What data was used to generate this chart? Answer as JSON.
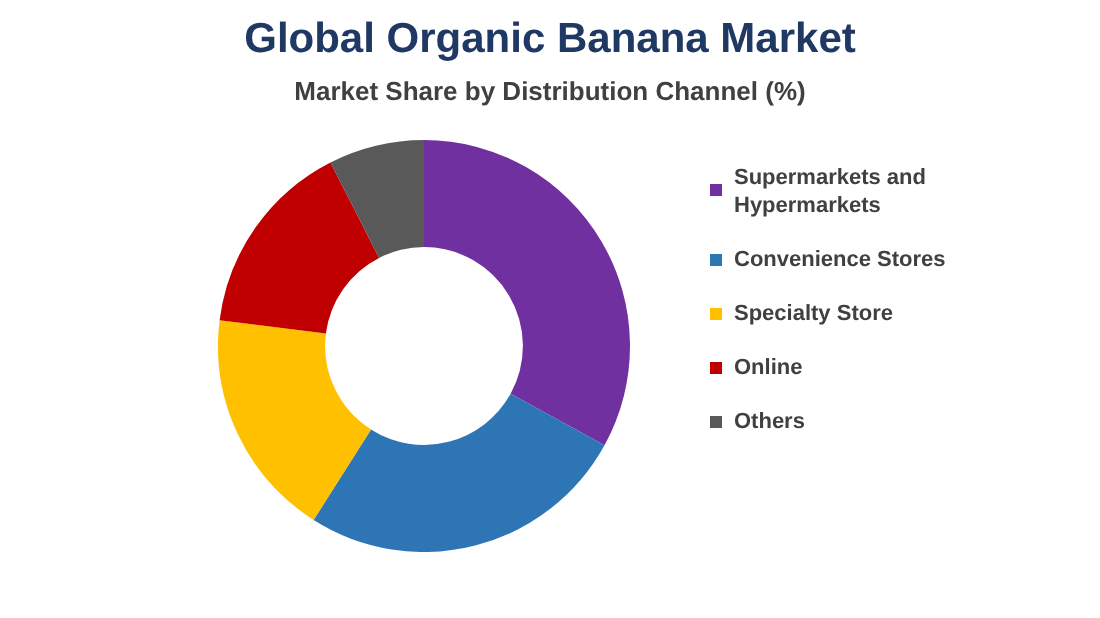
{
  "chart_data": {
    "type": "donut",
    "title": "Global Organic Banana Market",
    "subtitle": "Market Share by Distribution Channel (%)",
    "categories": [
      "Supermarkets and Hypermarkets",
      "Convenience Stores",
      "Specialty Store",
      "Online",
      "Others"
    ],
    "values": [
      33,
      26,
      18,
      15.5,
      7.5
    ],
    "colors": [
      "#7030a0",
      "#2e75b6",
      "#ffc000",
      "#c00000",
      "#595959"
    ],
    "legend": "right"
  }
}
